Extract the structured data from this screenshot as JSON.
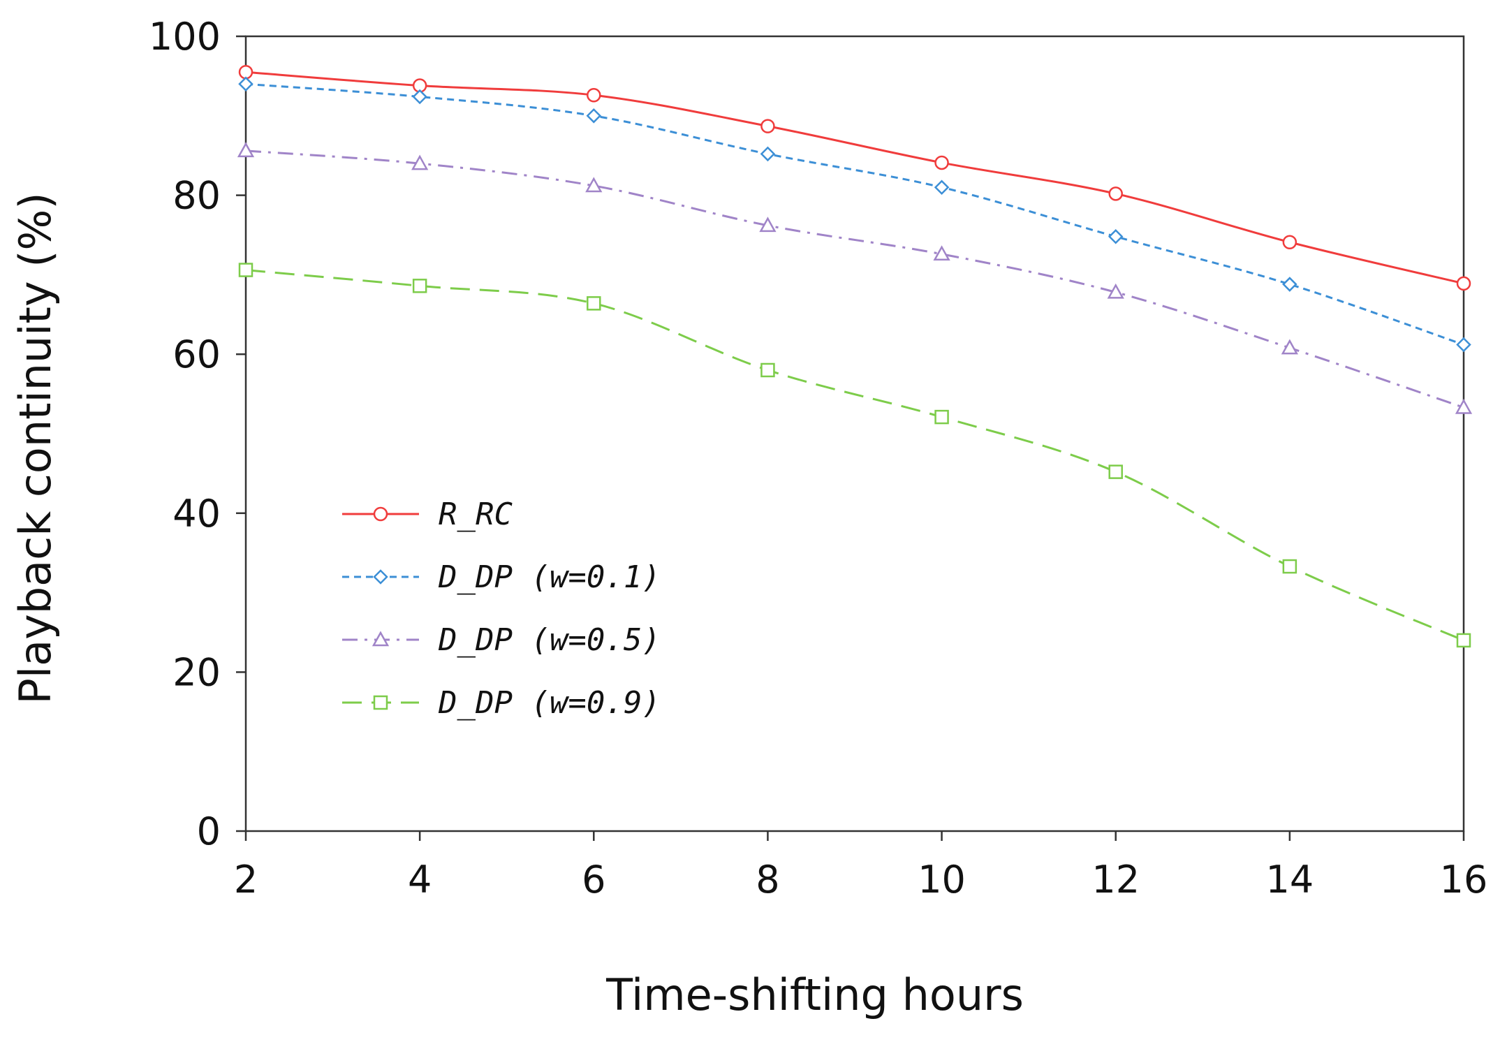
{
  "chart_data": {
    "type": "line",
    "title": "",
    "xlabel": "Time-shifting hours",
    "ylabel": "Playback continuity (%)",
    "x": [
      2,
      4,
      6,
      8,
      10,
      12,
      14,
      16
    ],
    "xlim": [
      2,
      16
    ],
    "ylim": [
      0,
      100
    ],
    "xticks": [
      "2",
      "4",
      "6",
      "8",
      "10",
      "12",
      "14",
      "16"
    ],
    "yticks": [
      "0",
      "20",
      "40",
      "60",
      "80",
      "100"
    ],
    "grid": false,
    "legend_position": "center-left",
    "series": [
      {
        "name": "R_RC",
        "values": [
          95.5,
          93.8,
          92.6,
          88.7,
          84.1,
          80.2,
          74.1,
          68.9
        ],
        "color": "#f03c3c",
        "dash": "solid",
        "marker": "circle"
      },
      {
        "name": "D_DP (w=0.1)",
        "values": [
          94.0,
          92.4,
          90.0,
          85.2,
          81.0,
          74.8,
          68.8,
          61.2
        ],
        "color": "#3c8fd6",
        "dash": "dashed",
        "marker": "diamond"
      },
      {
        "name": "D_DP (w=0.5)",
        "values": [
          85.6,
          84.0,
          81.2,
          76.2,
          72.6,
          67.8,
          60.8,
          53.3
        ],
        "color": "#a084c8",
        "dash": "dashdot",
        "marker": "triangle"
      },
      {
        "name": "D_DP (w=0.9)",
        "values": [
          70.6,
          68.6,
          66.4,
          58.0,
          52.1,
          45.2,
          33.3,
          24.0
        ],
        "color": "#7dcc4a",
        "dash": "longdash",
        "marker": "square"
      }
    ]
  }
}
